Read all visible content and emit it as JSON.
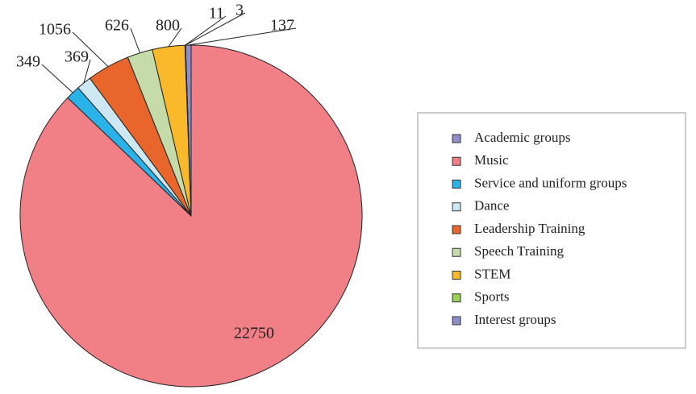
{
  "chart_data": {
    "type": "pie",
    "categories": [
      "Academic groups",
      "Music",
      "Service and uniform groups",
      "Dance",
      "Leadership Training",
      "Speech Training",
      "STEM",
      "Sports",
      "Interest groups"
    ],
    "values": [
      137,
      22750,
      349,
      369,
      1056,
      626,
      800,
      11,
      3
    ],
    "colors": [
      "#8e8fc8",
      "#f07f86",
      "#29b3e8",
      "#cde8f3",
      "#e8662c",
      "#c6dbaa",
      "#f9b92b",
      "#9bcf5a",
      "#8b8fcc"
    ],
    "legend": "right"
  }
}
